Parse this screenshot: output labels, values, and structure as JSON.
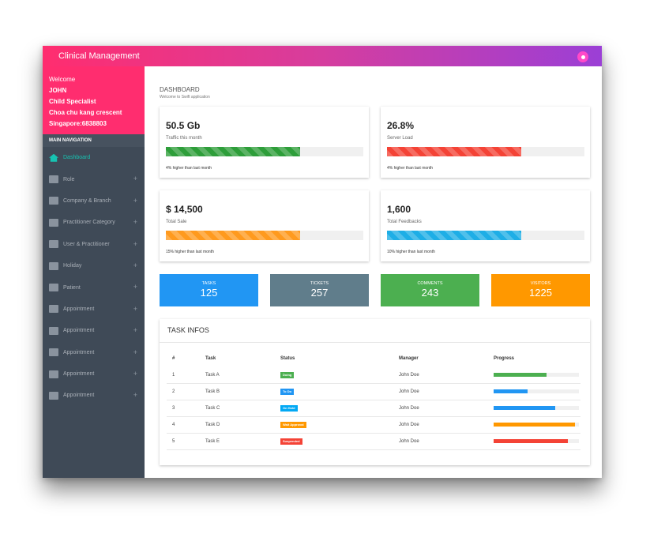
{
  "header": {
    "title": "Clinical Management",
    "avatar_icon": "user-icon"
  },
  "profile": {
    "welcome": "Welcome",
    "name": "JOHN",
    "role": "Child Specialist",
    "address": "Choa chu kang crescent",
    "city": "Singapore:6838803"
  },
  "sidebar": {
    "section_title": "MAIN NAVIGATION",
    "items": [
      {
        "label": "Dashboard",
        "icon": "home-icon",
        "active": true
      },
      {
        "label": "Role",
        "icon": "monitor-icon"
      },
      {
        "label": "Company & Branch",
        "icon": "tablet-icon"
      },
      {
        "label": "Practitioner Category",
        "icon": "list-icon"
      },
      {
        "label": "User & Practitioner",
        "icon": "users-icon"
      },
      {
        "label": "Holiday",
        "icon": "tree-icon"
      },
      {
        "label": "Patient",
        "icon": "hospital-icon"
      },
      {
        "label": "Appointment",
        "icon": "book-icon"
      },
      {
        "label": "Appointment",
        "icon": "book-icon"
      },
      {
        "label": "Appointment",
        "icon": "book-icon"
      },
      {
        "label": "Appointment",
        "icon": "book-icon"
      },
      {
        "label": "Appointment",
        "icon": "book-icon"
      }
    ]
  },
  "page": {
    "title": "DASHBOARD",
    "subtitle": "Welcome to Swift application"
  },
  "metrics": [
    {
      "value": "50.5 Gb",
      "label": "Traffic this month",
      "note": "4% higher than last month",
      "progress": 0.68,
      "color": "#2e9e3a"
    },
    {
      "value": "26.8%",
      "label": "Server Load",
      "note": "4% higher than last month",
      "progress": 0.68,
      "color": "#f44336"
    },
    {
      "value": "$ 14,500",
      "label": "Total Sale",
      "note": "15% higher than last month",
      "progress": 0.68,
      "color": "#ff9a1e"
    },
    {
      "value": "1,600",
      "label": "Total Feedbacks",
      "note": "10% higher than last month",
      "progress": 0.68,
      "color": "#1eaee6"
    }
  ],
  "stats": [
    {
      "label": "TASKS",
      "value": "125",
      "color": "#2196f3"
    },
    {
      "label": "TICKETS",
      "value": "257",
      "color": "#607d8b"
    },
    {
      "label": "COMMENTS",
      "value": "243",
      "color": "#4caf50"
    },
    {
      "label": "VISITORS",
      "value": "1225",
      "color": "#ff9800"
    }
  ],
  "tasks": {
    "title": "TASK INFOS",
    "columns": [
      "#",
      "Task",
      "Status",
      "Manager",
      "Progress"
    ],
    "rows": [
      {
        "num": "1",
        "task": "Task A",
        "status": "Doing",
        "status_color": "#4caf50",
        "manager": "John Doe",
        "progress": 0.62,
        "color": "#4caf50"
      },
      {
        "num": "2",
        "task": "Task B",
        "status": "To Do",
        "status_color": "#2196f3",
        "manager": "John Doe",
        "progress": 0.4,
        "color": "#2196f3"
      },
      {
        "num": "3",
        "task": "Task C",
        "status": "On Hold",
        "status_color": "#03a9f4",
        "manager": "John Doe",
        "progress": 0.72,
        "color": "#2196f3"
      },
      {
        "num": "4",
        "task": "Task D",
        "status": "Wait Approval",
        "status_color": "#ff9800",
        "manager": "John Doe",
        "progress": 0.95,
        "color": "#ff9800"
      },
      {
        "num": "5",
        "task": "Task E",
        "status": "Suspended",
        "status_color": "#f44336",
        "manager": "John Doe",
        "progress": 0.87,
        "color": "#f44336"
      }
    ]
  }
}
